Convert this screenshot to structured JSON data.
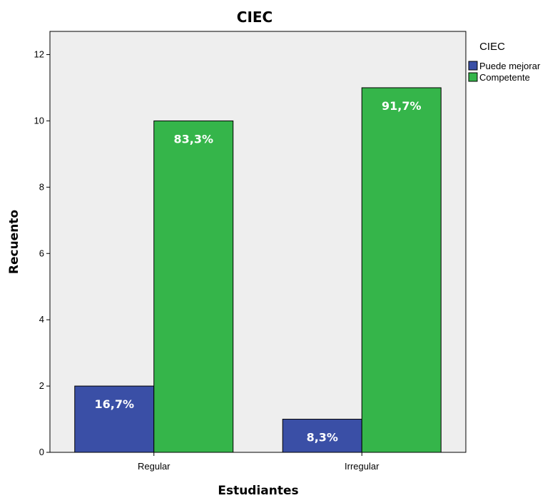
{
  "chart_data": {
    "type": "bar",
    "title": "CIEC",
    "xlabel": "Estudiantes",
    "ylabel": "Recuento",
    "categories": [
      "Regular",
      "Irregular"
    ],
    "ylim": [
      0,
      12.7
    ],
    "yticks": [
      0,
      2,
      4,
      6,
      8,
      10,
      12
    ],
    "grid": false,
    "legend": {
      "title": "CIEC",
      "position": "right"
    },
    "series": [
      {
        "name": "Puede mejorar",
        "color": "#3a4fa6",
        "values": [
          2,
          1
        ],
        "labels": [
          "16,7%",
          "8,3%"
        ]
      },
      {
        "name": "Competente",
        "color": "#35b54a",
        "values": [
          10,
          11
        ],
        "labels": [
          "83,3%",
          "91,7%"
        ]
      }
    ]
  }
}
